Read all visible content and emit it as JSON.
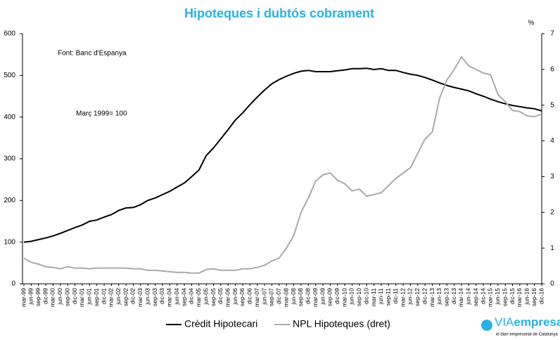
{
  "chart_data": {
    "type": "line",
    "title": "Hipoteques i dubtós cobrament",
    "annotations": [
      "Font: Banc d'Espanya",
      "Març 1999= 100"
    ],
    "y2label": "%",
    "categories": [
      "mar-99",
      "jun-99",
      "sep-99",
      "dic-99",
      "mar-00",
      "jun-00",
      "sep-00",
      "dic-00",
      "mar-01",
      "jun-01",
      "sep-01",
      "dic-01",
      "mar-02",
      "jun-02",
      "sep-02",
      "dic-02",
      "mar-03",
      "jun-03",
      "sep-03",
      "dic-03",
      "mar-04",
      "jun-04",
      "sep-04",
      "dic-04",
      "mar-05",
      "jun-05",
      "sep-05",
      "dic-05",
      "mar-06",
      "jun-06",
      "sep-06",
      "dic-06",
      "mar-07",
      "jun-07",
      "sep-07",
      "dic-07",
      "mar-08",
      "jun-08",
      "sep-08",
      "dic-08",
      "mar-09",
      "jun-09",
      "sep-09",
      "dic-09",
      "mar-10",
      "jun-10",
      "sep-10",
      "dic-10",
      "mar-11",
      "jun-11",
      "sep-11",
      "dic-11",
      "mar-12",
      "jun-12",
      "sep-12",
      "dic-12",
      "mar-13",
      "jun-13",
      "sep-13",
      "dic-13",
      "mar-14",
      "jun-14",
      "sep-14",
      "dic-14",
      "mar-15",
      "jun-15",
      "sep-15",
      "dic-15",
      "mar-16",
      "jun-16",
      "sep-16",
      "dic-16"
    ],
    "series": [
      {
        "name": "Crèdit Hipotecari",
        "color": "#000000",
        "values": [
          100,
          102,
          106,
          110,
          115,
          121,
          128,
          135,
          141,
          150,
          153,
          160,
          166,
          176,
          182,
          183,
          190,
          200,
          206,
          214,
          222,
          232,
          242,
          257,
          273,
          308,
          326,
          348,
          370,
          393,
          410,
          430,
          448,
          465,
          480,
          490,
          498,
          505,
          510,
          512,
          509,
          509,
          509,
          511,
          513,
          516,
          516,
          517,
          514,
          516,
          512,
          512,
          507,
          503,
          500,
          495,
          489,
          482,
          476,
          471,
          467,
          463,
          456,
          450,
          443,
          437,
          432,
          428,
          425,
          422,
          420,
          415
        ]
      },
      {
        "name": "NPL Hipoteques (dret)",
        "color": "#aaaaaa",
        "axis": "y2",
        "values": [
          0.72,
          0.6,
          0.55,
          0.48,
          0.46,
          0.42,
          0.48,
          0.44,
          0.44,
          0.42,
          0.44,
          0.44,
          0.44,
          0.44,
          0.44,
          0.42,
          0.42,
          0.38,
          0.38,
          0.36,
          0.34,
          0.32,
          0.32,
          0.3,
          0.3,
          0.4,
          0.42,
          0.38,
          0.38,
          0.38,
          0.42,
          0.42,
          0.46,
          0.52,
          0.64,
          0.72,
          1.0,
          1.35,
          2.0,
          2.4,
          2.87,
          3.05,
          3.1,
          2.9,
          2.8,
          2.6,
          2.65,
          2.45,
          2.5,
          2.55,
          2.75,
          2.95,
          3.1,
          3.25,
          3.65,
          4.05,
          4.25,
          5.2,
          5.7,
          6.0,
          6.35,
          6.1,
          6.0,
          5.9,
          5.85,
          5.3,
          5.1,
          4.85,
          4.82,
          4.7,
          4.68,
          4.75
        ]
      }
    ],
    "ylim": [
      0,
      600
    ],
    "yticks": [
      0,
      100,
      200,
      300,
      400,
      500,
      600
    ],
    "y2lim": [
      0,
      7
    ],
    "y2ticks": [
      0,
      1,
      2,
      3,
      4,
      5,
      6,
      7
    ],
    "grid": false
  },
  "logo": {
    "brand_a": "VIA",
    "brand_b": "empresa",
    "tagline": "el diari empresarial de Catalunya"
  }
}
